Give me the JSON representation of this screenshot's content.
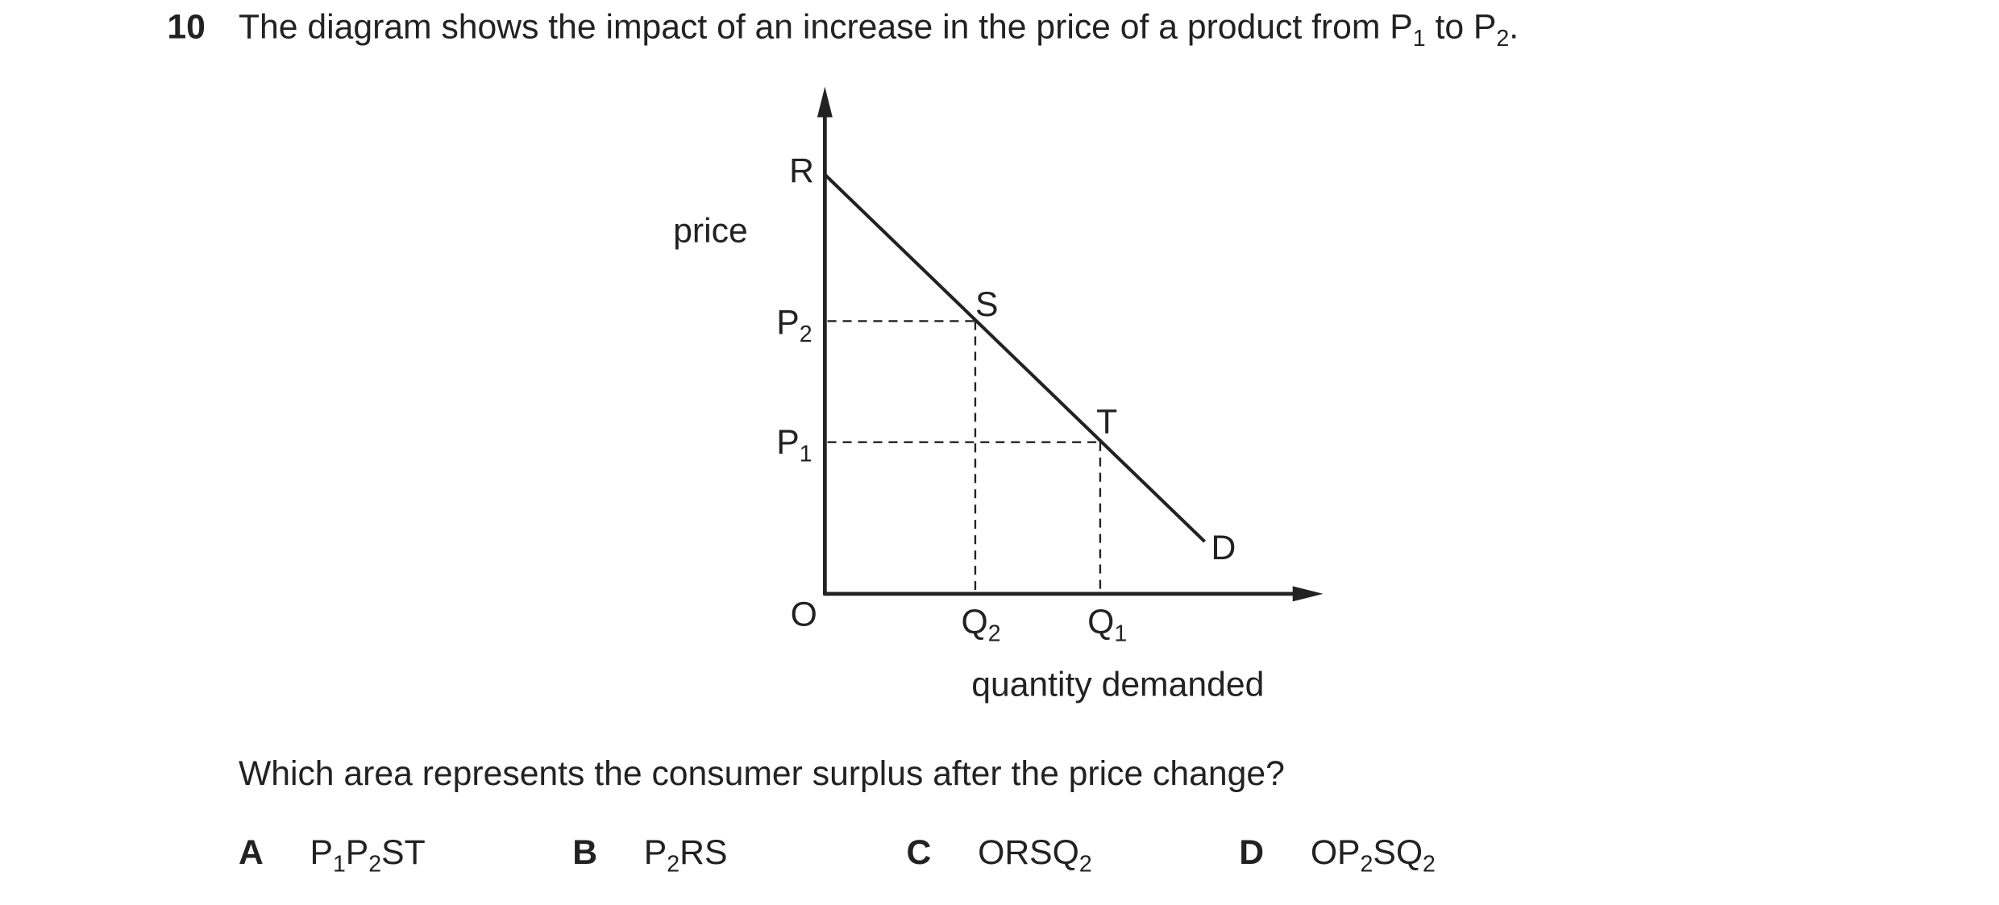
{
  "question": {
    "number": "10",
    "stem": [
      "The diagram shows the impact of an increase in the price of a product from P",
      "1",
      " to P",
      "2",
      "."
    ],
    "prompt": "Which area represents the consumer surplus after the price change?"
  },
  "diagram": {
    "y_axis_label": "price",
    "x_axis_label": "quantity demanded",
    "origin": "O",
    "curve_top": "R",
    "curve_end": "D",
    "point_s": "S",
    "point_t": "T",
    "p2": [
      "P",
      "2"
    ],
    "p1": [
      "P",
      "1"
    ],
    "q2": [
      "Q",
      "2"
    ],
    "q1": [
      "Q",
      "1"
    ]
  },
  "options": [
    {
      "letter": "A",
      "text": [
        "P",
        "1",
        "P",
        "2",
        "ST"
      ]
    },
    {
      "letter": "B",
      "text": [
        "P",
        "2",
        "RS"
      ]
    },
    {
      "letter": "C",
      "text": [
        "ORSQ",
        "2"
      ]
    },
    {
      "letter": "D",
      "text": [
        "OP",
        "2",
        "SQ",
        "2"
      ]
    }
  ]
}
